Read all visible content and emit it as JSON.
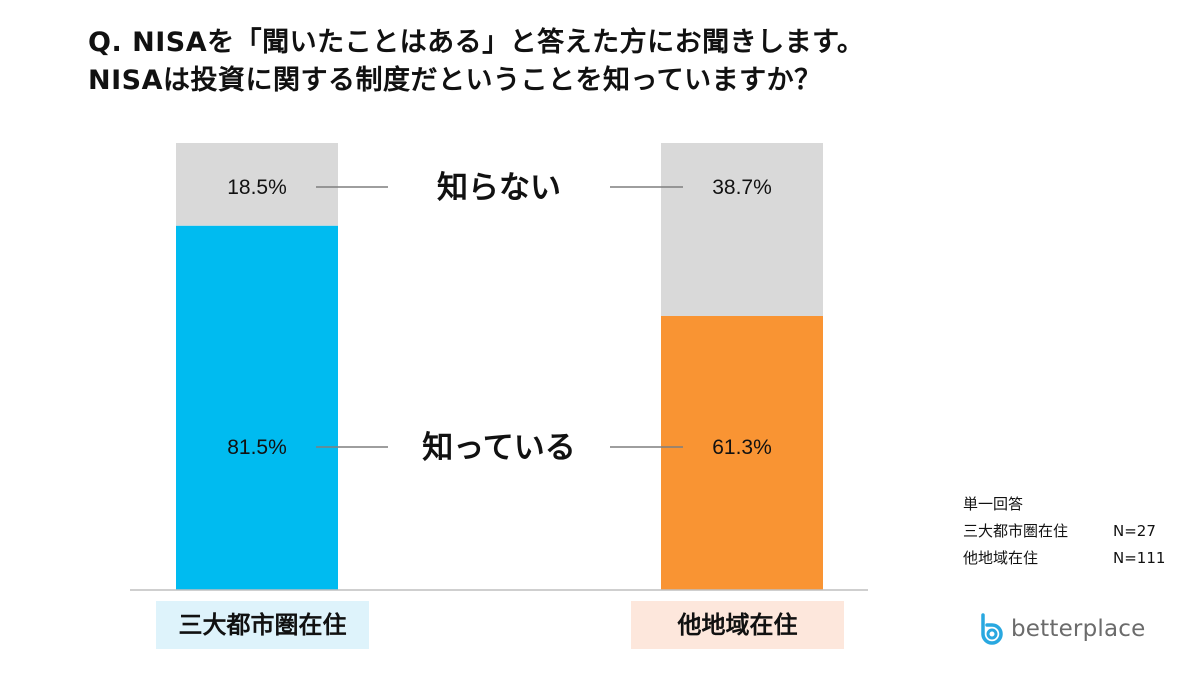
{
  "title": {
    "line1": "Q. NISAを「聞いたことはある」と答えた方にお聞きします。",
    "line2": "NISAは投資に関する制度だということを知っていますか？"
  },
  "chart_data": {
    "type": "bar",
    "stacked": true,
    "percent": true,
    "categories": [
      "三大都市圏在住",
      "他地域在住"
    ],
    "series": [
      {
        "name": "知っている",
        "values": [
          81.5,
          61.3
        ],
        "labels": [
          "81.5%",
          "61.3%"
        ],
        "colors": [
          "#00bbf0",
          "#f99433"
        ]
      },
      {
        "name": "知らない",
        "values": [
          18.5,
          38.7
        ],
        "labels": [
          "18.5%",
          "38.7%"
        ],
        "colors": [
          "#d9d9d9",
          "#d9d9d9"
        ]
      }
    ],
    "ylim": [
      0,
      100
    ]
  },
  "notes": {
    "answer_type": "単一回答",
    "rows": [
      {
        "label": "三大都市圏在住",
        "n": "N=27"
      },
      {
        "label": "他地域在住",
        "n": "N=111"
      }
    ]
  },
  "logo": {
    "text": "betterplace",
    "color": "#29a8e0"
  }
}
